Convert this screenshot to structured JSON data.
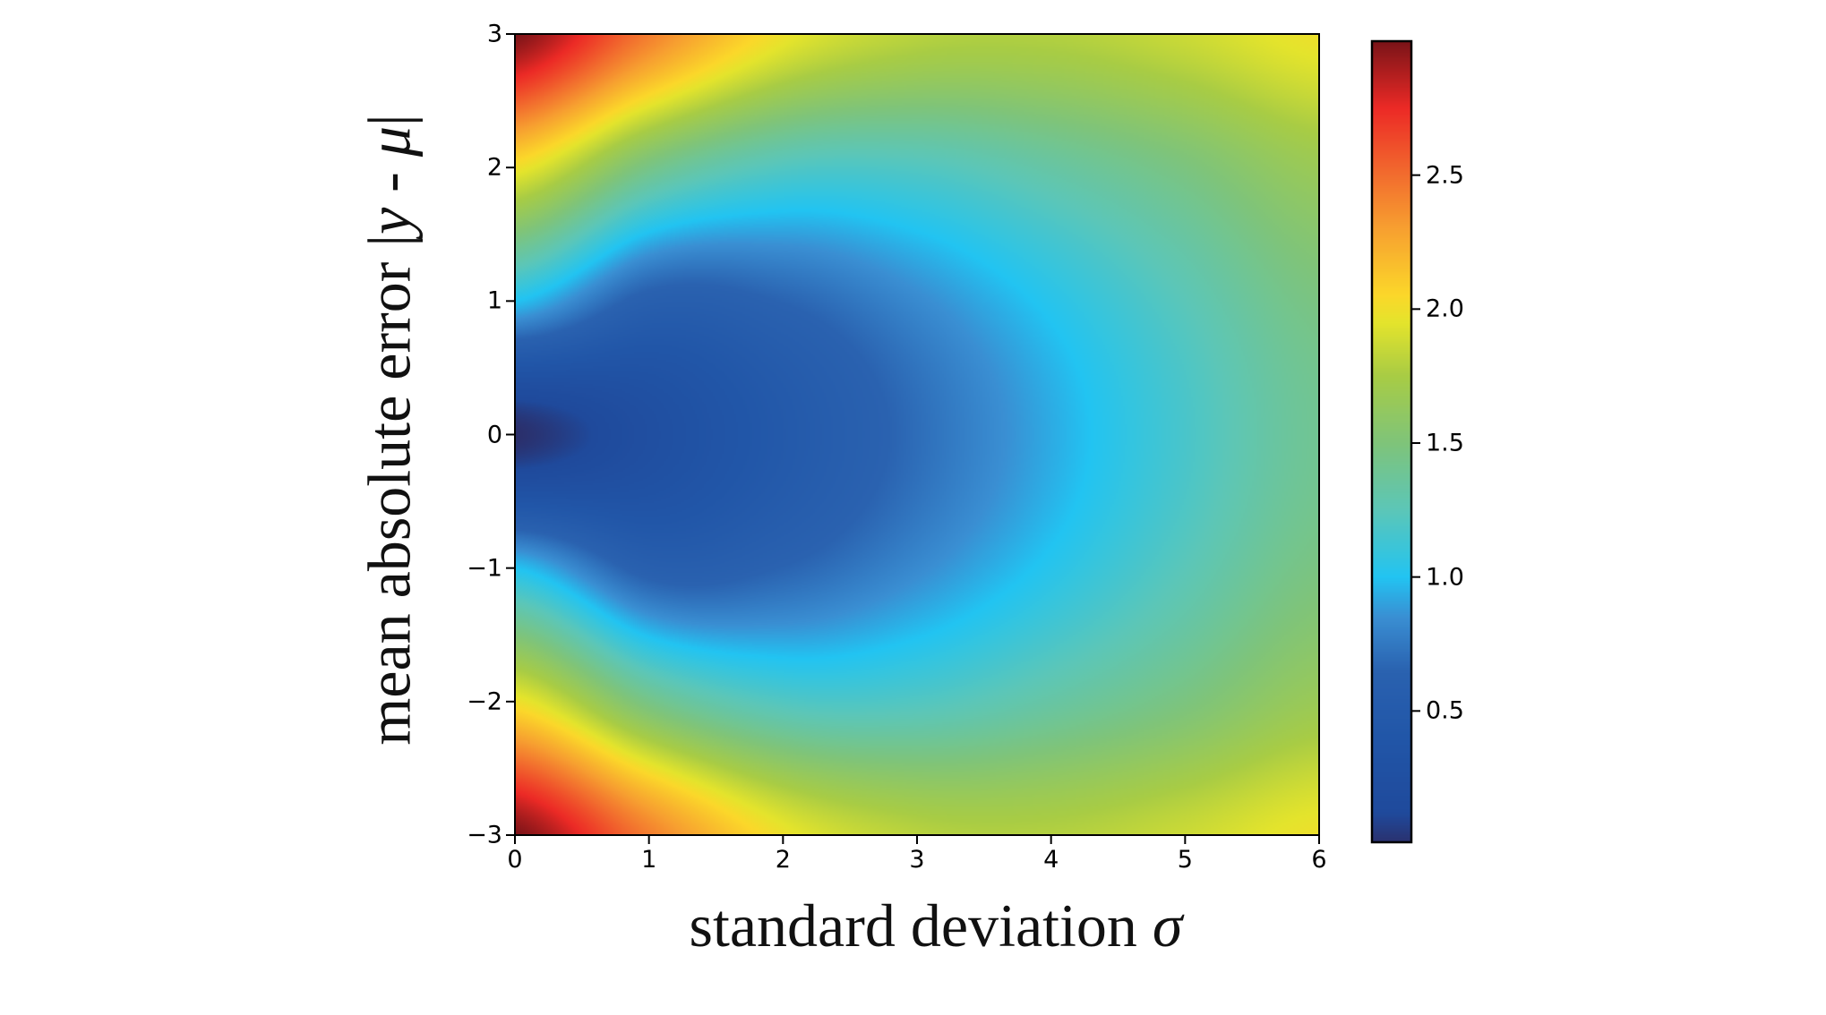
{
  "chart_data": {
    "type": "heatmap",
    "title": "",
    "xlabel": "standard deviation",
    "xlabel_symbol": "σ",
    "ylabel": "mean absolute error |",
    "ylabel_symbol_y": "y",
    "ylabel_middle": " - ",
    "ylabel_symbol_mu": "μ",
    "ylabel_end": "|",
    "xlim": [
      0,
      6
    ],
    "ylim": [
      -3,
      3
    ],
    "xticks": [
      "0",
      "1",
      "2",
      "3",
      "4",
      "5",
      "6"
    ],
    "xtick_values": [
      0,
      1,
      2,
      3,
      4,
      5,
      6
    ],
    "yticks": [
      "−3",
      "−2",
      "−1",
      "0",
      "1",
      "2",
      "3"
    ],
    "ytick_values": [
      -3,
      -2,
      -1,
      0,
      1,
      2,
      3
    ],
    "colorbar": {
      "range": [
        0.01,
        3.0
      ],
      "ticks": [
        "0.5",
        "1.0",
        "1.5",
        "2.0",
        "2.5"
      ],
      "tick_values": [
        0.5,
        1.0,
        1.5,
        2.0,
        2.5
      ],
      "colormap_stops": [
        [
          0.0,
          "#2b2f6b"
        ],
        [
          0.12,
          "#1f4a9c"
        ],
        [
          0.4,
          "#2156a8"
        ],
        [
          0.65,
          "#2a62b0"
        ],
        [
          0.85,
          "#3a8fd3"
        ],
        [
          1.0,
          "#22c4f2"
        ],
        [
          1.25,
          "#5cc6b8"
        ],
        [
          1.5,
          "#7fc47a"
        ],
        [
          1.75,
          "#a8cc45"
        ],
        [
          1.95,
          "#e4e42c"
        ],
        [
          2.05,
          "#fbd82a"
        ],
        [
          2.3,
          "#f7a030"
        ],
        [
          2.5,
          "#f26d2e"
        ],
        [
          2.75,
          "#ec2a26"
        ],
        [
          3.0,
          "#7a1418"
        ]
      ]
    },
    "grid_sigma": [
      0,
      1,
      2,
      3,
      4,
      5,
      6
    ],
    "grid_abs_error": [
      0,
      1,
      2,
      3
    ],
    "grid_values": [
      [
        0.0,
        1.0,
        2.0,
        3.0
      ],
      [
        0.23,
        0.6,
        1.45,
        2.44
      ],
      [
        0.47,
        0.66,
        1.21,
        1.99
      ],
      [
        0.7,
        0.83,
        1.21,
        1.81
      ],
      [
        0.93,
        1.03,
        1.33,
        1.79
      ],
      [
        1.17,
        1.25,
        1.48,
        1.87
      ],
      [
        1.4,
        1.47,
        1.67,
        1.99
      ]
    ]
  }
}
